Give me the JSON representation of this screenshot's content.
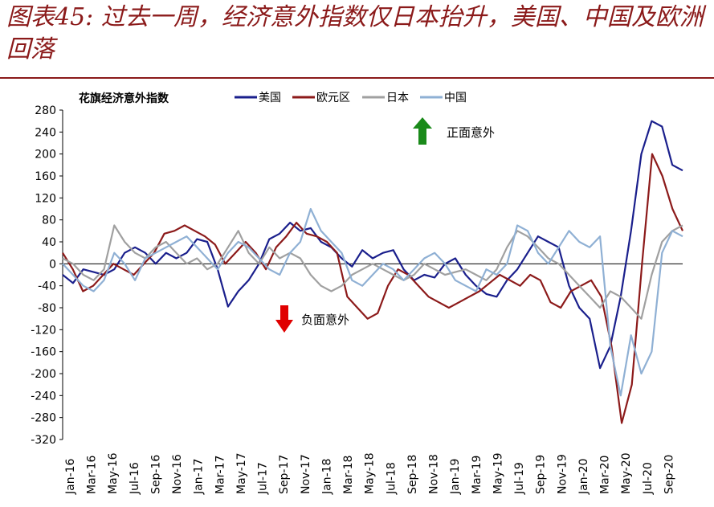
{
  "page": {
    "title": "图表45: 过去一周，经济意外指数仅日本抬升，美国、中国及欧洲回落"
  },
  "chart_data": {
    "type": "line",
    "title": "花旗经济意外指数",
    "ylim": [
      -320,
      280
    ],
    "yticks": [
      280,
      240,
      200,
      160,
      120,
      80,
      40,
      0,
      -40,
      -80,
      -120,
      -160,
      -200,
      -240,
      -280,
      -320
    ],
    "x_labels": [
      "Jan-16",
      "Mar-16",
      "May-16",
      "Jul-16",
      "Sep-16",
      "Nov-16",
      "Jan-17",
      "Mar-17",
      "May-17",
      "Jul-17",
      "Sep-17",
      "Nov-17",
      "Jan-18",
      "Mar-18",
      "May-18",
      "Jul-18",
      "Sep-18",
      "Nov-18",
      "Jan-19",
      "Mar-19",
      "May-19",
      "Jul-19",
      "Sep-19",
      "Nov-19",
      "Jan-20",
      "Mar-20",
      "May-20",
      "Jul-20",
      "Sep-20"
    ],
    "legend_position": "top",
    "annotations": {
      "positive": "正面意外",
      "negative": "负面意外"
    },
    "series": [
      {
        "name": "美国",
        "color": "#1a1f8c",
        "values": [
          -20,
          -35,
          -10,
          -15,
          -20,
          -10,
          20,
          30,
          20,
          0,
          20,
          10,
          20,
          45,
          40,
          -10,
          -78,
          -50,
          -30,
          0,
          45,
          55,
          75,
          60,
          65,
          40,
          30,
          10,
          -5,
          25,
          10,
          20,
          25,
          -10,
          -30,
          -20,
          -25,
          0,
          10,
          -20,
          -40,
          -55,
          -60,
          -30,
          -10,
          20,
          50,
          40,
          30,
          -40,
          -80,
          -100,
          -190,
          -150,
          -60,
          60,
          200,
          260,
          250,
          180,
          170
        ]
      },
      {
        "name": "欧元区",
        "color": "#8c1a1a",
        "values": [
          20,
          -10,
          -50,
          -40,
          -20,
          0,
          -10,
          -20,
          0,
          20,
          55,
          60,
          70,
          60,
          50,
          35,
          0,
          20,
          40,
          20,
          -10,
          30,
          50,
          75,
          55,
          50,
          40,
          20,
          -60,
          -80,
          -100,
          -90,
          -40,
          -10,
          -20,
          -40,
          -60,
          -70,
          -80,
          -70,
          -60,
          -50,
          -35,
          -20,
          -30,
          -40,
          -20,
          -30,
          -70,
          -80,
          -50,
          -40,
          -30,
          -60,
          -150,
          -290,
          -220,
          0,
          200,
          160,
          100,
          60
        ]
      },
      {
        "name": "日本",
        "color": "#a0a0a0",
        "values": [
          10,
          0,
          -20,
          -30,
          -10,
          70,
          40,
          20,
          10,
          30,
          40,
          20,
          0,
          10,
          -10,
          0,
          30,
          60,
          20,
          0,
          30,
          10,
          20,
          10,
          -20,
          -40,
          -50,
          -40,
          -20,
          -10,
          0,
          -10,
          -20,
          -30,
          -20,
          0,
          -10,
          -20,
          -15,
          -10,
          -20,
          -30,
          -10,
          30,
          60,
          50,
          30,
          10,
          0,
          -20,
          -40,
          -60,
          -80,
          -50,
          -60,
          -80,
          -100,
          -20,
          40,
          60,
          70
        ]
      },
      {
        "name": "中国",
        "color": "#8fb0d4",
        "values": [
          0,
          -20,
          -40,
          -50,
          -30,
          20,
          0,
          -30,
          10,
          20,
          30,
          40,
          50,
          30,
          10,
          -10,
          20,
          40,
          30,
          10,
          -10,
          -20,
          20,
          40,
          100,
          60,
          40,
          20,
          -30,
          -40,
          -20,
          0,
          -10,
          -30,
          -10,
          10,
          20,
          0,
          -30,
          -40,
          -50,
          -10,
          -20,
          0,
          70,
          60,
          20,
          0,
          30,
          60,
          40,
          30,
          50,
          -150,
          -240,
          -130,
          -200,
          -160,
          20,
          60,
          50
        ]
      }
    ]
  }
}
